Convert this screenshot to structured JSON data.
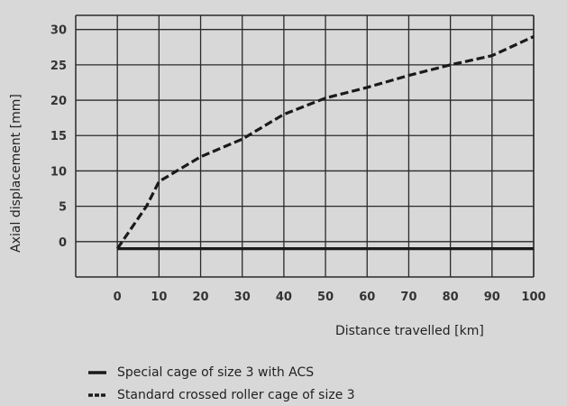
{
  "chart_data": {
    "type": "line",
    "xlabel": "Distance travelled [km]",
    "ylabel": "Axial displacement [mm]",
    "xlim": [
      -10,
      100
    ],
    "ylim": [
      -5,
      32
    ],
    "x_ticks": [
      0,
      10,
      20,
      30,
      40,
      50,
      60,
      70,
      80,
      90,
      100
    ],
    "y_ticks": [
      0,
      5,
      10,
      15,
      20,
      25,
      30
    ],
    "grid": true,
    "legend_placement": "bottom-left",
    "series": [
      {
        "name": "Special cage of size 3 with ACS",
        "style": "solid",
        "color": "#1a1a1a",
        "x": [
          0,
          100
        ],
        "y": [
          -1,
          -1
        ]
      },
      {
        "name": "Standard crossed roller cage of size 3",
        "style": "dashed",
        "color": "#1a1a1a",
        "x": [
          0,
          7,
          10,
          20,
          30,
          40,
          50,
          60,
          70,
          80,
          90,
          100
        ],
        "y": [
          -1,
          5,
          8.5,
          12,
          14.5,
          18,
          20.3,
          21.8,
          23.5,
          25,
          26.3,
          29
        ]
      }
    ]
  }
}
